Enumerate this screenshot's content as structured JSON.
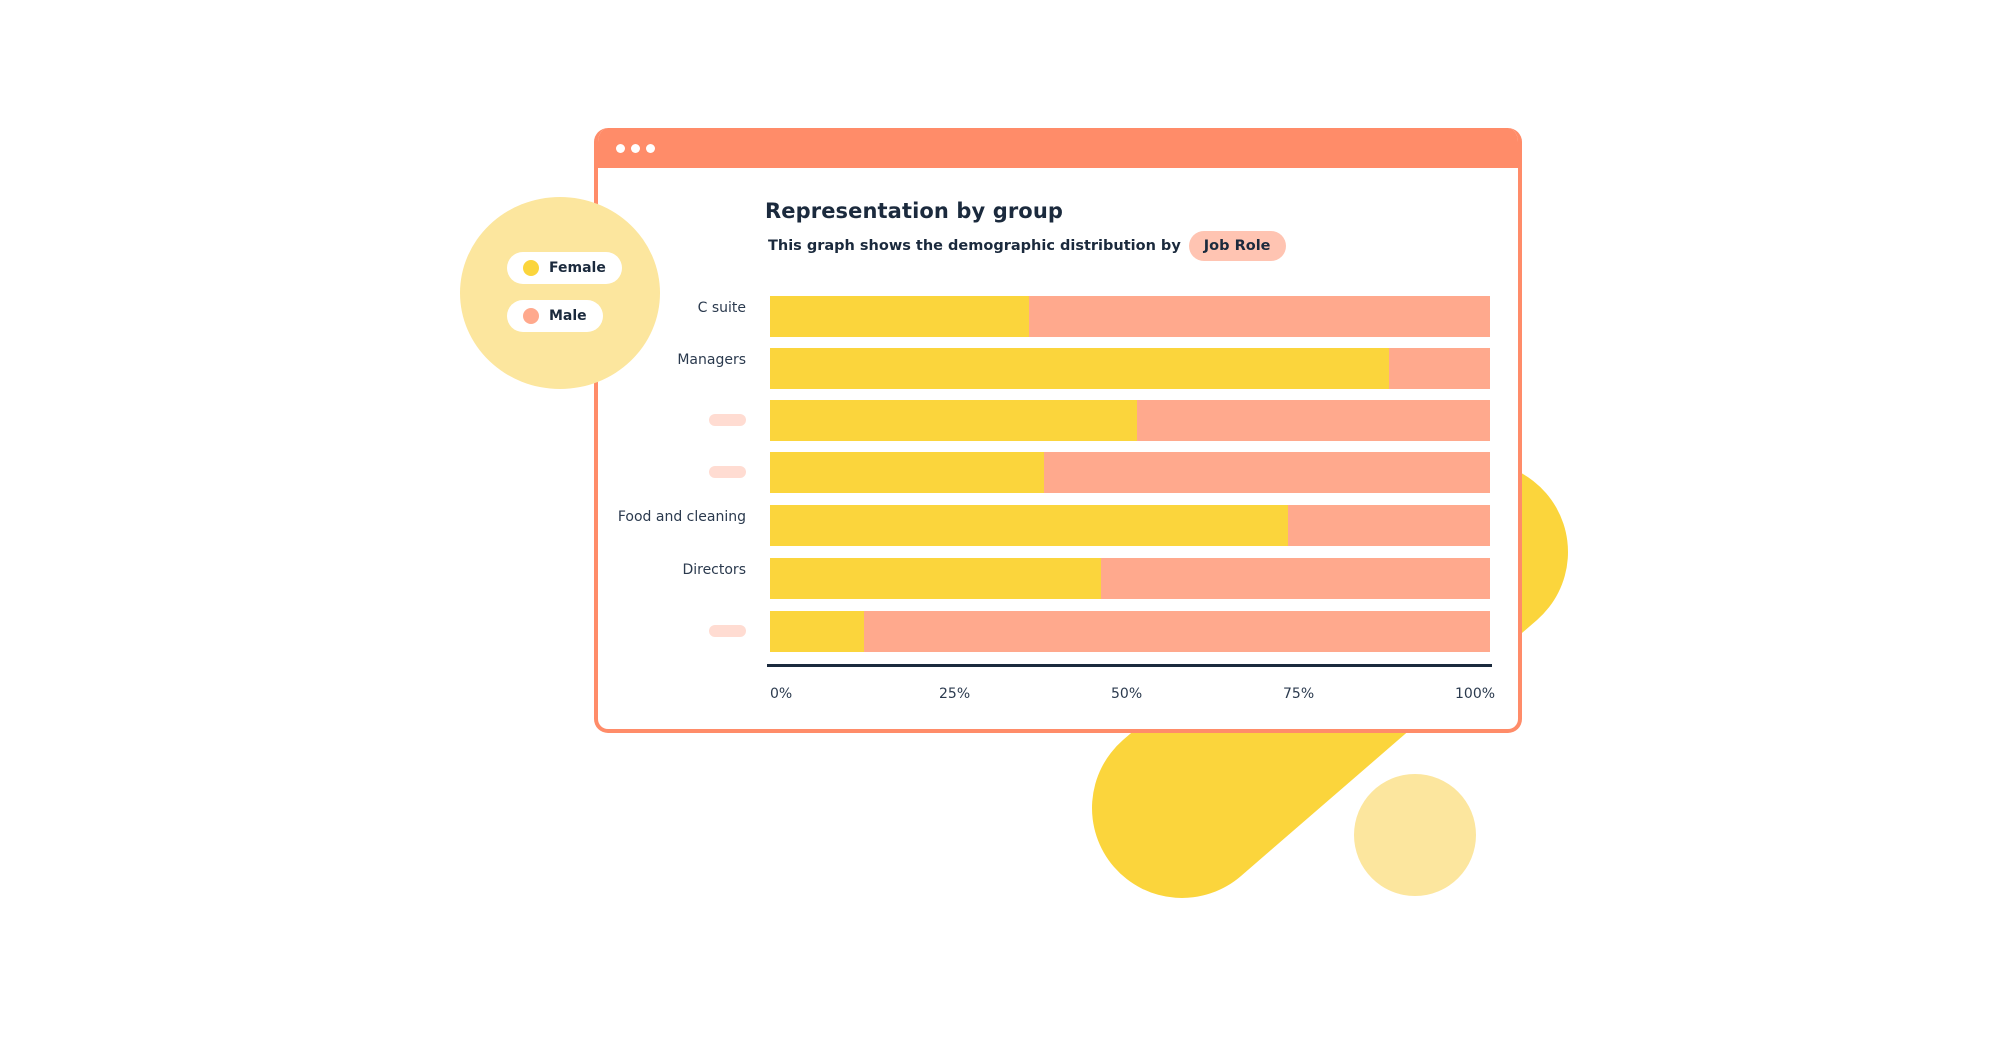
{
  "colors": {
    "window_accent": "#ff8c69",
    "female": "#fbd53c",
    "male": "#ffa98d",
    "legend_bubble": "#fce69e",
    "light_circle": "#fce69e",
    "capsule": "#fbd53c",
    "job_role_pill": "#ffc4b2",
    "placeholder_label": "#ffdcd2",
    "axis_line": "#1b2a3d"
  },
  "window": {
    "titlebar_dots": 3
  },
  "legend": {
    "items": [
      {
        "label": "Female",
        "color": "#fbd53c"
      },
      {
        "label": "Male",
        "color": "#ffa98d"
      }
    ]
  },
  "header": {
    "title": "Representation by group",
    "subtitle": "This graph shows the demographic distribution by",
    "group_by": "Job Role"
  },
  "chart_data": {
    "type": "bar",
    "orientation": "horizontal",
    "stacked": true,
    "normalized": true,
    "title": "Representation by group",
    "subtitle": "This graph shows the demographic distribution by Job Role",
    "categories": [
      "C suite",
      "Managers",
      "",
      "",
      "Food and cleaning",
      "Directors",
      ""
    ],
    "series": [
      {
        "name": "Female",
        "color": "#fbd53c",
        "values": [
          36,
          86,
          51,
          38,
          72,
          46,
          13
        ]
      },
      {
        "name": "Male",
        "color": "#ffa98d",
        "values": [
          64,
          14,
          49,
          62,
          28,
          54,
          87
        ]
      }
    ],
    "xlabel": "",
    "ylabel": "",
    "xlim": [
      0,
      100
    ],
    "x_ticks": [
      "0%",
      "25%",
      "50%",
      "75%",
      "100%"
    ],
    "grid": false,
    "legend_position": "left"
  }
}
